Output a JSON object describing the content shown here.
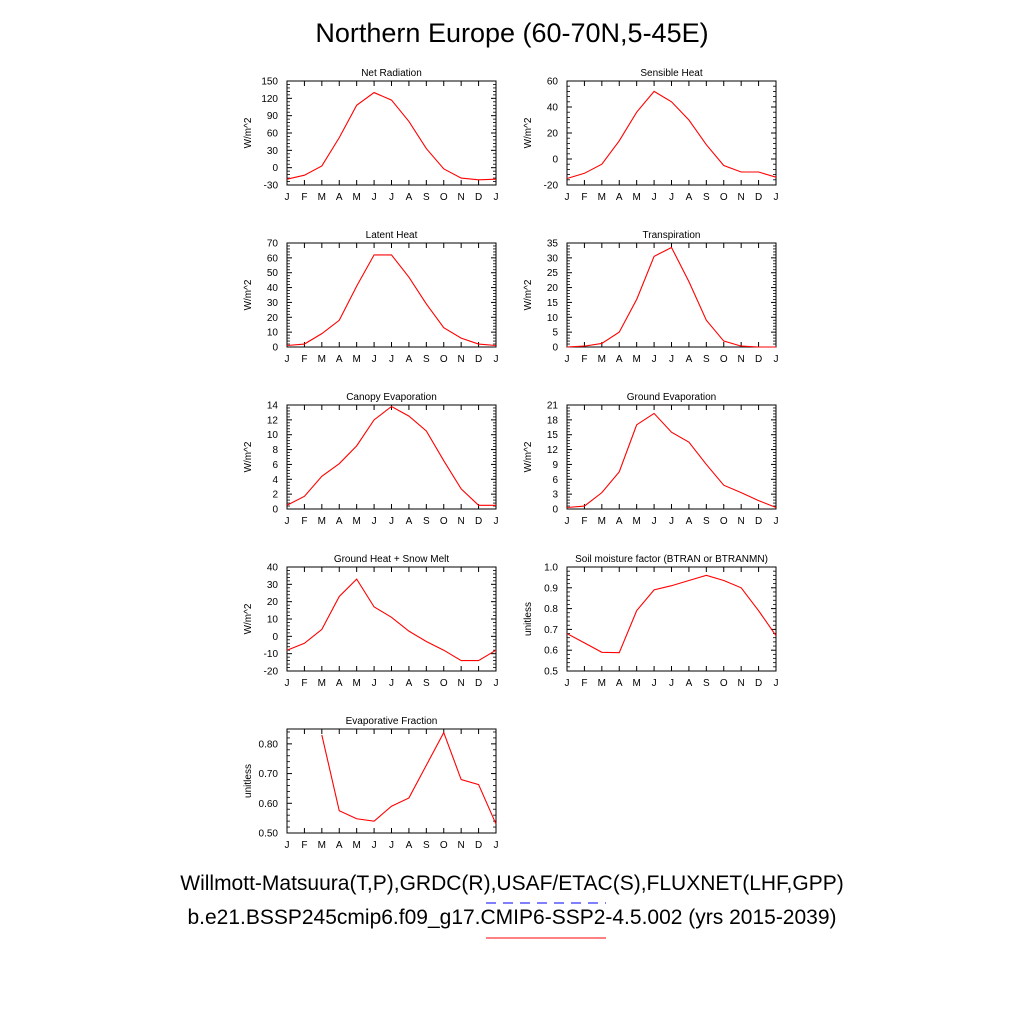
{
  "title": "Northern Europe (60-70N,5-45E)",
  "legend": [
    {
      "label": "Willmott-Matsuura(T,P),GRDC(R),USAF/ETAC(S),FLUXNET(LHF,GPP)",
      "color": "#0000ff",
      "style": "dashed"
    },
    {
      "label": "b.e21.BSSP245cmip6.f09_g17.CMIP6-SSP2-4.5.002 (yrs 2015-2039)",
      "color": "#ff0000",
      "style": "solid"
    }
  ],
  "chart_data": [
    {
      "type": "line",
      "title": "Net Radiation",
      "ylabel": "W/m^2",
      "categories": [
        "J",
        "F",
        "M",
        "A",
        "M",
        "J",
        "J",
        "A",
        "S",
        "O",
        "N",
        "D",
        "J"
      ],
      "ylim": [
        -30,
        150
      ],
      "yticks": [
        -30,
        0,
        30,
        60,
        90,
        120,
        150
      ],
      "ytick_labels": [
        "-30",
        "0",
        "30",
        "60",
        "90",
        "120",
        "150"
      ],
      "series": [
        {
          "color": "#ff0000",
          "values": [
            -20,
            -13,
            3,
            52,
            108,
            130,
            117,
            80,
            33,
            -2,
            -18,
            -21,
            -20
          ]
        }
      ]
    },
    {
      "type": "line",
      "title": "Sensible Heat",
      "ylabel": "W/m^2",
      "categories": [
        "J",
        "F",
        "M",
        "A",
        "M",
        "J",
        "J",
        "A",
        "S",
        "O",
        "N",
        "D",
        "J"
      ],
      "ylim": [
        -20,
        60
      ],
      "yticks": [
        -20,
        0,
        20,
        40,
        60
      ],
      "ytick_labels": [
        "-20",
        "0",
        "20",
        "40",
        "60"
      ],
      "series": [
        {
          "color": "#ff0000",
          "values": [
            -15,
            -11,
            -4,
            14,
            36,
            52,
            44,
            30,
            11,
            -5,
            -10,
            -10,
            -14
          ]
        }
      ]
    },
    {
      "type": "line",
      "title": "Latent Heat",
      "ylabel": "W/m^2",
      "categories": [
        "J",
        "F",
        "M",
        "A",
        "M",
        "J",
        "J",
        "A",
        "S",
        "O",
        "N",
        "D",
        "J"
      ],
      "ylim": [
        0,
        70
      ],
      "yticks": [
        0,
        10,
        20,
        30,
        40,
        50,
        60,
        70
      ],
      "ytick_labels": [
        "0",
        "10",
        "20",
        "30",
        "40",
        "50",
        "60",
        "70"
      ],
      "series": [
        {
          "color": "#ff0000",
          "values": [
            1,
            2,
            9,
            18,
            41,
            62,
            62,
            47,
            29,
            13,
            6,
            2,
            1
          ]
        }
      ]
    },
    {
      "type": "line",
      "title": "Transpiration",
      "ylabel": "W/m^2",
      "categories": [
        "J",
        "F",
        "M",
        "A",
        "M",
        "J",
        "J",
        "A",
        "S",
        "O",
        "N",
        "D",
        "J"
      ],
      "ylim": [
        0,
        35
      ],
      "yticks": [
        0,
        5,
        10,
        15,
        20,
        25,
        30,
        35
      ],
      "ytick_labels": [
        "0",
        "5",
        "10",
        "15",
        "20",
        "25",
        "30",
        "35"
      ],
      "series": [
        {
          "color": "#ff0000",
          "values": [
            0,
            0.3,
            1.2,
            5,
            16,
            30.5,
            33.5,
            22,
            9,
            2,
            0.3,
            0,
            0
          ]
        }
      ]
    },
    {
      "type": "line",
      "title": "Canopy Evaporation",
      "ylabel": "W/m^2",
      "categories": [
        "J",
        "F",
        "M",
        "A",
        "M",
        "J",
        "J",
        "A",
        "S",
        "O",
        "N",
        "D",
        "J"
      ],
      "ylim": [
        0,
        14
      ],
      "yticks": [
        0,
        2,
        4,
        6,
        8,
        10,
        12,
        14
      ],
      "ytick_labels": [
        "0",
        "2",
        "4",
        "6",
        "8",
        "10",
        "12",
        "14"
      ],
      "series": [
        {
          "color": "#ff0000",
          "values": [
            0.5,
            1.7,
            4.4,
            6.1,
            8.5,
            12,
            13.8,
            12.5,
            10.5,
            6.5,
            2.7,
            0.5,
            0.5
          ]
        }
      ]
    },
    {
      "type": "line",
      "title": "Ground Evaporation",
      "ylabel": "W/m^2",
      "categories": [
        "J",
        "F",
        "M",
        "A",
        "M",
        "J",
        "J",
        "A",
        "S",
        "O",
        "N",
        "D",
        "J"
      ],
      "ylim": [
        0,
        21
      ],
      "yticks": [
        0,
        3,
        6,
        9,
        12,
        15,
        18,
        21
      ],
      "ytick_labels": [
        "0",
        "3",
        "6",
        "9",
        "12",
        "15",
        "18",
        "21"
      ],
      "series": [
        {
          "color": "#ff0000",
          "values": [
            0.3,
            0.6,
            3.3,
            7.5,
            17,
            19.3,
            15.5,
            13.5,
            9,
            4.8,
            3.3,
            1.7,
            0.3
          ]
        }
      ]
    },
    {
      "type": "line",
      "title": "Ground Heat + Snow Melt",
      "ylabel": "W/m^2",
      "categories": [
        "J",
        "F",
        "M",
        "A",
        "M",
        "J",
        "J",
        "A",
        "S",
        "O",
        "N",
        "D",
        "J"
      ],
      "ylim": [
        -20,
        40
      ],
      "yticks": [
        -20,
        -10,
        0,
        10,
        20,
        30,
        40
      ],
      "ytick_labels": [
        "-20",
        "-10",
        "0",
        "10",
        "20",
        "30",
        "40"
      ],
      "series": [
        {
          "color": "#ff0000",
          "values": [
            -8,
            -4,
            4,
            23,
            33,
            17,
            11,
            3,
            -3,
            -8,
            -14,
            -14,
            -8
          ]
        }
      ]
    },
    {
      "type": "line",
      "title": "Soil moisture factor (BTRAN or BTRANMN)",
      "ylabel": "unitless",
      "categories": [
        "J",
        "F",
        "M",
        "A",
        "M",
        "J",
        "J",
        "A",
        "S",
        "O",
        "N",
        "D",
        "J"
      ],
      "ylim": [
        0.5,
        1.0
      ],
      "yticks": [
        0.5,
        0.6,
        0.7,
        0.8,
        0.9,
        1.0
      ],
      "ytick_labels": [
        "0.5",
        "0.6",
        "0.7",
        "0.8",
        "0.9",
        "1.0"
      ],
      "series": [
        {
          "color": "#ff0000",
          "values": [
            0.68,
            0.635,
            0.59,
            0.588,
            0.79,
            0.89,
            0.91,
            0.935,
            0.96,
            0.935,
            0.9,
            0.79,
            0.67
          ]
        }
      ]
    },
    {
      "type": "line",
      "title": "Evaporative Fraction",
      "ylabel": "unitless",
      "categories": [
        "J",
        "F",
        "M",
        "A",
        "M",
        "J",
        "J",
        "A",
        "S",
        "O",
        "N",
        "D",
        "J"
      ],
      "ylim": [
        0.5,
        0.85
      ],
      "yticks": [
        0.5,
        0.6,
        0.7,
        0.8
      ],
      "ytick_labels": [
        "0.50",
        "0.60",
        "0.70",
        "0.80"
      ],
      "series": [
        {
          "color": "#ff0000",
          "values": [
            null,
            null,
            0.83,
            0.575,
            0.548,
            0.54,
            0.59,
            0.618,
            0.728,
            0.838,
            0.68,
            0.663,
            0.53
          ]
        }
      ]
    }
  ]
}
